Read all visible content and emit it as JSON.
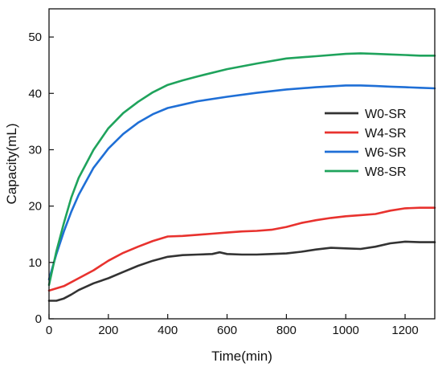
{
  "chart_data": {
    "type": "line",
    "title": "",
    "xlabel": "Time(min)",
    "ylabel": "Capacity(mL)",
    "xlim": [
      0,
      1300
    ],
    "ylim": [
      0,
      55
    ],
    "xticks": [
      0,
      200,
      400,
      600,
      800,
      1000,
      1200
    ],
    "yticks": [
      0,
      10,
      20,
      30,
      40,
      50
    ],
    "grid": false,
    "legend_position": "right",
    "series": [
      {
        "name": "W0-SR",
        "color": "#333333",
        "x": [
          0,
          25,
          50,
          75,
          100,
          150,
          200,
          250,
          300,
          350,
          400,
          450,
          500,
          550,
          575,
          600,
          650,
          700,
          750,
          800,
          850,
          900,
          950,
          1000,
          1050,
          1100,
          1150,
          1200,
          1250,
          1300
        ],
        "y": [
          3.2,
          3.2,
          3.6,
          4.3,
          5.1,
          6.3,
          7.2,
          8.3,
          9.4,
          10.3,
          11.0,
          11.3,
          11.4,
          11.5,
          11.8,
          11.5,
          11.4,
          11.4,
          11.5,
          11.6,
          11.9,
          12.3,
          12.6,
          12.5,
          12.4,
          12.8,
          13.4,
          13.7,
          13.6,
          13.6
        ]
      },
      {
        "name": "W4-SR",
        "color": "#e8322e",
        "x": [
          0,
          50,
          100,
          150,
          200,
          250,
          300,
          350,
          400,
          450,
          500,
          550,
          600,
          650,
          700,
          750,
          800,
          850,
          900,
          950,
          1000,
          1050,
          1100,
          1150,
          1200,
          1250,
          1300
        ],
        "y": [
          5.0,
          5.8,
          7.2,
          8.6,
          10.3,
          11.7,
          12.8,
          13.8,
          14.6,
          14.7,
          14.9,
          15.1,
          15.3,
          15.5,
          15.6,
          15.8,
          16.3,
          17.0,
          17.5,
          17.9,
          18.2,
          18.4,
          18.6,
          19.2,
          19.6,
          19.7,
          19.7
        ]
      },
      {
        "name": "W6-SR",
        "color": "#1f6fd6",
        "x": [
          0,
          25,
          50,
          75,
          100,
          150,
          200,
          250,
          300,
          350,
          400,
          450,
          500,
          600,
          700,
          800,
          900,
          1000,
          1050,
          1100,
          1150,
          1200,
          1250,
          1300
        ],
        "y": [
          7.0,
          11.5,
          15.5,
          19.0,
          22.0,
          26.8,
          30.2,
          32.8,
          34.8,
          36.3,
          37.4,
          38.0,
          38.6,
          39.4,
          40.1,
          40.7,
          41.1,
          41.4,
          41.4,
          41.3,
          41.2,
          41.1,
          41.0,
          40.9
        ]
      },
      {
        "name": "W8-SR",
        "color": "#1fa35c",
        "x": [
          0,
          25,
          50,
          75,
          100,
          150,
          200,
          250,
          300,
          350,
          400,
          450,
          500,
          600,
          700,
          800,
          900,
          1000,
          1050,
          1100,
          1150,
          1200,
          1250,
          1300
        ],
        "y": [
          6.0,
          12.0,
          17.0,
          21.5,
          25.0,
          30.0,
          33.8,
          36.5,
          38.5,
          40.2,
          41.5,
          42.3,
          43.0,
          44.3,
          45.3,
          46.2,
          46.6,
          47.0,
          47.1,
          47.0,
          46.9,
          46.8,
          46.7,
          46.7
        ]
      }
    ]
  }
}
